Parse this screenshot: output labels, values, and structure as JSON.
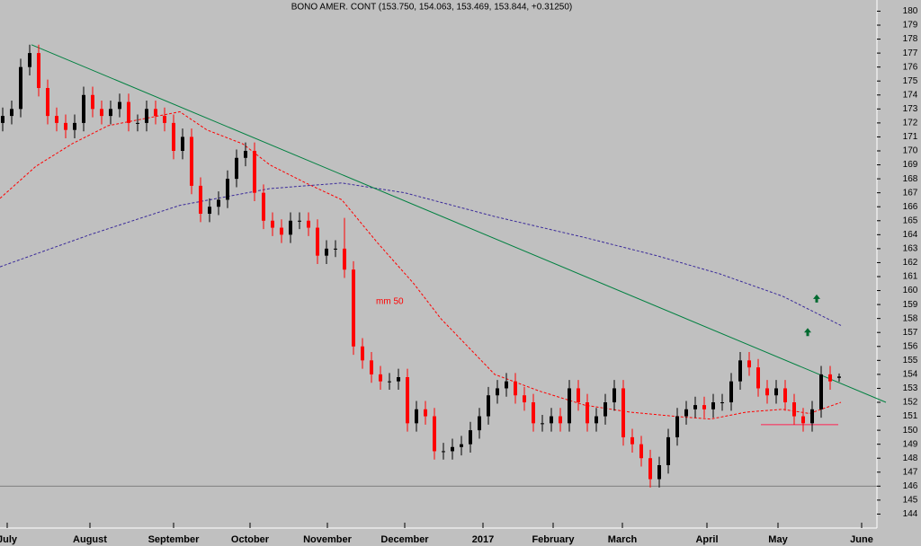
{
  "chart_data": {
    "type": "candlestick",
    "title": "BONO AMER. CONT (153.750, 154.063, 153.469, 153.844, +0.31250)",
    "x": [
      0,
      1,
      2,
      3,
      4,
      5,
      6,
      7,
      8,
      9,
      10,
      11,
      12,
      13,
      14,
      15,
      16,
      17,
      18,
      19,
      20,
      21,
      22,
      23,
      24,
      25,
      26,
      27,
      28,
      29,
      30,
      31,
      32,
      33,
      34,
      35,
      36,
      37,
      38,
      39,
      40,
      41,
      42,
      43,
      44,
      45,
      46,
      47,
      48,
      49,
      50,
      51,
      52,
      53,
      54,
      55,
      56,
      57,
      58,
      59,
      60,
      61,
      62,
      63,
      64,
      65,
      66,
      67,
      68,
      69,
      70,
      71,
      72,
      73,
      74,
      75,
      76,
      77,
      78,
      79,
      80,
      81,
      82,
      83,
      84,
      85,
      86,
      87,
      88,
      89,
      90,
      91,
      92,
      93
    ],
    "open": [
      172,
      172.5,
      173,
      176,
      177,
      174.5,
      172.5,
      172,
      171.5,
      172,
      174,
      173,
      172.5,
      173,
      173.5,
      172,
      172,
      173,
      172.5,
      172,
      170,
      171,
      167.5,
      165.5,
      166,
      166.5,
      168,
      169.5,
      170,
      167,
      165,
      164.5,
      164,
      165,
      165,
      164.5,
      162.5,
      163,
      163,
      161.5,
      156,
      155,
      154,
      153.5,
      153.5,
      153.8,
      150.5,
      151.5,
      151,
      148.5,
      148.5,
      148.8,
      149,
      150,
      151,
      152.5,
      153,
      153.5,
      152.5,
      152,
      150.5,
      150.5,
      151,
      150.5,
      153,
      152,
      150.5,
      151,
      152,
      153,
      149.5,
      149,
      148,
      146.5,
      147.5,
      149.5,
      151,
      151.5,
      151.8,
      151.5,
      152,
      152,
      153.5,
      155,
      154.5,
      153,
      152.5,
      153,
      152,
      151,
      150.5,
      151.5,
      154,
      153.75
    ],
    "high": [
      173.1,
      173.6,
      176.6,
      177.6,
      177.6,
      175.1,
      173.1,
      172.6,
      172.6,
      174.6,
      174.6,
      173.6,
      173.6,
      174.1,
      174.1,
      172.6,
      173.6,
      173.6,
      173.1,
      172.6,
      171.6,
      171.6,
      168.1,
      166.6,
      167.1,
      168.6,
      170.1,
      170.6,
      170.6,
      167.6,
      165.6,
      165.1,
      165.6,
      165.6,
      165.6,
      165.1,
      163.6,
      163.6,
      165.2,
      162.1,
      156.6,
      155.6,
      154.6,
      154.1,
      154.4,
      154.4,
      152.1,
      152.1,
      151.6,
      149.1,
      149.4,
      149.6,
      150.6,
      151.6,
      153.1,
      153.6,
      154.1,
      154.1,
      153.1,
      152.6,
      151.1,
      151.6,
      151.6,
      153.6,
      153.6,
      152.6,
      151.6,
      152.6,
      153.6,
      153.6,
      150.1,
      149.6,
      148.6,
      148.1,
      150.1,
      151.6,
      152.1,
      152.4,
      152.4,
      152.6,
      152.6,
      154.1,
      155.6,
      155.6,
      155.1,
      153.6,
      153.6,
      153.6,
      152.6,
      151.6,
      152.1,
      154.6,
      154.6,
      154.063
    ],
    "low": [
      171.4,
      171.9,
      172.4,
      175.4,
      173.9,
      171.9,
      171.4,
      170.9,
      170.9,
      171.4,
      172.4,
      171.9,
      171.9,
      172.4,
      171.4,
      171.4,
      171.4,
      171.9,
      171.4,
      169.4,
      169.4,
      166.9,
      164.9,
      164.9,
      165.4,
      165.9,
      167.4,
      168.9,
      166.4,
      164.4,
      163.9,
      163.4,
      163.4,
      164.4,
      163.9,
      161.9,
      161.9,
      162.4,
      160.9,
      155.4,
      154.4,
      153.4,
      152.9,
      152.9,
      152.9,
      149.9,
      149.9,
      150.4,
      147.9,
      147.9,
      147.9,
      148.2,
      148.4,
      149.4,
      150.4,
      151.9,
      152.4,
      151.9,
      151.4,
      149.9,
      149.9,
      149.9,
      149.9,
      149.9,
      151.4,
      149.9,
      149.9,
      150.4,
      151.4,
      148.9,
      148.4,
      147.4,
      145.9,
      145.9,
      146.9,
      148.9,
      150.4,
      150.9,
      150.9,
      150.9,
      151.4,
      151.4,
      152.9,
      153.9,
      152.4,
      151.9,
      151.9,
      151.4,
      150.4,
      149.9,
      149.9,
      150.9,
      152.9,
      153.469
    ],
    "close": [
      172.5,
      173,
      176,
      177,
      174.5,
      172.5,
      172,
      171.5,
      172,
      174,
      173,
      172.5,
      173,
      173.5,
      172,
      172,
      173,
      172.5,
      172,
      170,
      171,
      167.5,
      165.5,
      166,
      166.5,
      168,
      169.5,
      170,
      167,
      165,
      164.5,
      164,
      165,
      165,
      164.5,
      162.5,
      163,
      163,
      161.5,
      156,
      155,
      154,
      153.5,
      153.5,
      153.8,
      150.5,
      151.5,
      151,
      148.5,
      148.5,
      148.8,
      149,
      150,
      151,
      152.5,
      153,
      153.5,
      152.5,
      152,
      150.5,
      150.5,
      151,
      150.5,
      153,
      152,
      150.5,
      151,
      152,
      153,
      149.5,
      149,
      148,
      146.5,
      147.5,
      149.5,
      151,
      151.5,
      151.8,
      151.5,
      152,
      152,
      153.5,
      155,
      154.5,
      153,
      152.5,
      153,
      152,
      151,
      150.5,
      151.5,
      154,
      153.5,
      153.844
    ],
    "up_color": "#000000",
    "down_color": "#ff0000",
    "series": [
      {
        "color": "#ff0000",
        "dash": true,
        "x": [
          -0.3,
          3.7,
          7.7,
          11.7,
          15.7,
          19.7,
          22.7,
          26.7,
          29.7,
          33.7,
          37.7,
          41.7,
          45.7,
          48.7,
          51.7,
          54.7,
          59.7,
          64.7,
          69.7,
          74.7,
          78.7,
          82.7,
          86.7,
          89.7,
          93.2
        ],
        "values": [
          166.6,
          168.9,
          170.5,
          171.8,
          172.3,
          172.8,
          171.5,
          170.5,
          169,
          167.7,
          166.5,
          163.4,
          160.5,
          158,
          156,
          154,
          152.8,
          151.8,
          151.3,
          151,
          150.8,
          151.3,
          151.5,
          151.2,
          152
        ]
      },
      {
        "color": "#3a2a9a",
        "dash": true,
        "x": [
          -0.3,
          9.7,
          19.7,
          29.7,
          37.7,
          44.7,
          54.7,
          64.7,
          72.7,
          79.7,
          86.7,
          93.2
        ],
        "values": [
          161.7,
          164,
          166.1,
          167.3,
          167.7,
          167,
          165.3,
          163.8,
          162.5,
          161.2,
          159.6,
          157.5
        ]
      },
      {
        "color": "#008040",
        "dash": false,
        "x": [
          3.2,
          98.2
        ],
        "values": [
          177.6,
          152
        ]
      },
      {
        "color": "#ff2050",
        "dash": false,
        "x": [
          84.3,
          92.9
        ],
        "values": [
          150.4,
          150.4
        ]
      }
    ],
    "hline": 146,
    "annotations": [
      {
        "text": "mm 50",
        "x": 41.5,
        "y": 159.2,
        "color": "#ff0000"
      }
    ],
    "arrows": [
      {
        "x": 90.5,
        "y": 159.4
      },
      {
        "x": 89.5,
        "y": 157
      }
    ],
    "xlim": [
      -0.3,
      97.2
    ],
    "ylim": [
      143,
      180.8
    ],
    "yticks": [
      144,
      145,
      146,
      147,
      148,
      149,
      150,
      151,
      152,
      153,
      154,
      155,
      156,
      157,
      158,
      159,
      160,
      161,
      162,
      163,
      164,
      165,
      166,
      167,
      168,
      169,
      170,
      171,
      172,
      173,
      174,
      175,
      176,
      177,
      178,
      179,
      180
    ],
    "xticks": [
      {
        "value": 0.5,
        "label": "July"
      },
      {
        "value": 9.7,
        "label": "August"
      },
      {
        "value": 19,
        "label": "September"
      },
      {
        "value": 27.5,
        "label": "October"
      },
      {
        "value": 36.1,
        "label": "November"
      },
      {
        "value": 44.7,
        "label": "December"
      },
      {
        "value": 53.4,
        "label": "2017"
      },
      {
        "value": 61.2,
        "label": "February"
      },
      {
        "value": 68.9,
        "label": "March"
      },
      {
        "value": 78.3,
        "label": "April"
      },
      {
        "value": 86.2,
        "label": "May"
      },
      {
        "value": 95.5,
        "label": "June"
      }
    ]
  }
}
